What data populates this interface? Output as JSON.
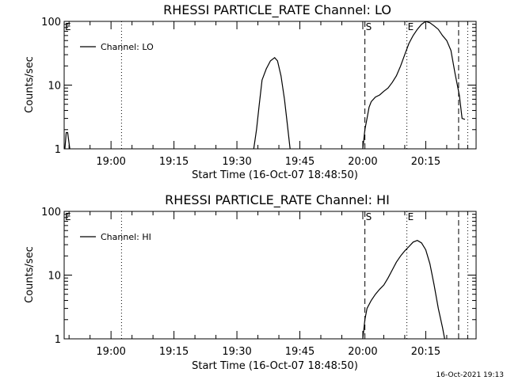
{
  "footer_timestamp": "16-Oct-2021 19:13",
  "chart_data": [
    {
      "type": "line",
      "title": "RHESSI PARTICLE_RATE Channel: LO",
      "xlabel": "Start Time (16-Oct-07 18:48:50)",
      "ylabel": "Counts/sec",
      "yscale": "log",
      "ylim": [
        1,
        100
      ],
      "y_ticks": [
        1,
        10,
        100
      ],
      "y_tick_labels": [
        "1",
        "10",
        "100"
      ],
      "xlim": [
        "18:48:50",
        "20:27:00"
      ],
      "x_ticks": [
        "19:00",
        "19:15",
        "19:30",
        "19:45",
        "20:00",
        "20:15"
      ],
      "legend": {
        "position": "top-left",
        "entries": [
          "Channel: LO"
        ]
      },
      "markers": [
        {
          "label": "E",
          "time": "18:48:50",
          "style": "none"
        },
        {
          "label": "",
          "time": "19:02:30",
          "style": "dotted"
        },
        {
          "label": "S",
          "time": "20:00:30",
          "style": "dashed"
        },
        {
          "label": "E",
          "time": "20:10:30",
          "style": "dotted"
        },
        {
          "label": "",
          "time": "20:22:50",
          "style": "dashed"
        },
        {
          "label": "",
          "time": "20:25:00",
          "style": "dotted"
        }
      ],
      "series": [
        {
          "name": "Channel: LO",
          "segments": [
            [
              [
                "18:49:00",
                1
              ],
              [
                "18:49:20",
                1.8
              ],
              [
                "18:49:40",
                1.8
              ],
              [
                "18:50:10",
                1
              ]
            ],
            [
              [
                "19:34:00",
                1
              ],
              [
                "19:34:40",
                2
              ],
              [
                "19:35:20",
                5
              ],
              [
                "19:36:00",
                12
              ],
              [
                "19:37:00",
                18
              ],
              [
                "19:38:00",
                24
              ],
              [
                "19:39:00",
                27
              ],
              [
                "19:39:40",
                24
              ],
              [
                "19:40:30",
                14
              ],
              [
                "19:41:20",
                6
              ],
              [
                "19:42:00",
                2.5
              ],
              [
                "19:42:40",
                1
              ]
            ],
            [
              [
                "20:00:00",
                1
              ],
              [
                "20:00:30",
                2
              ],
              [
                "20:01:00",
                3
              ],
              [
                "20:01:30",
                4.5
              ],
              [
                "20:02:00",
                5.5
              ],
              [
                "20:03:00",
                6.5
              ],
              [
                "20:04:00",
                7
              ],
              [
                "20:05:00",
                8
              ],
              [
                "20:06:00",
                9
              ],
              [
                "20:07:00",
                11
              ],
              [
                "20:08:00",
                14
              ],
              [
                "20:09:00",
                20
              ],
              [
                "20:10:00",
                30
              ],
              [
                "20:11:00",
                45
              ],
              [
                "20:12:00",
                60
              ],
              [
                "20:13:00",
                75
              ],
              [
                "20:14:00",
                90
              ],
              [
                "20:15:00",
                100
              ],
              [
                "20:16:00",
                95
              ],
              [
                "20:17:00",
                85
              ],
              [
                "20:18:00",
                75
              ],
              [
                "20:19:00",
                60
              ],
              [
                "20:20:00",
                50
              ],
              [
                "20:21:00",
                35
              ],
              [
                "20:22:00",
                15
              ],
              [
                "20:23:00",
                7
              ],
              [
                "20:23:40",
                3
              ],
              [
                "20:24:20",
                2.9
              ]
            ]
          ]
        }
      ]
    },
    {
      "type": "line",
      "title": "RHESSI PARTICLE_RATE Channel: HI",
      "xlabel": "Start Time (16-Oct-07 18:48:50)",
      "ylabel": "Counts/sec",
      "yscale": "log",
      "ylim": [
        1,
        100
      ],
      "y_ticks": [
        1,
        10,
        100
      ],
      "y_tick_labels": [
        "1",
        "10",
        "100"
      ],
      "xlim": [
        "18:48:50",
        "20:27:00"
      ],
      "x_ticks": [
        "19:00",
        "19:15",
        "19:30",
        "19:45",
        "20:00",
        "20:15"
      ],
      "legend": {
        "position": "top-left",
        "entries": [
          "Channel: HI"
        ]
      },
      "markers": [
        {
          "label": "E",
          "time": "18:48:50",
          "style": "none"
        },
        {
          "label": "",
          "time": "19:02:30",
          "style": "dotted"
        },
        {
          "label": "S",
          "time": "20:00:30",
          "style": "dashed"
        },
        {
          "label": "E",
          "time": "20:10:30",
          "style": "dotted"
        },
        {
          "label": "",
          "time": "20:22:50",
          "style": "dashed"
        },
        {
          "label": "",
          "time": "20:25:00",
          "style": "dotted"
        }
      ],
      "series": [
        {
          "name": "Channel: HI",
          "segments": [
            [
              [
                "20:00:00",
                1
              ],
              [
                "20:00:30",
                2
              ],
              [
                "20:01:00",
                3
              ],
              [
                "20:02:00",
                4
              ],
              [
                "20:03:00",
                5
              ],
              [
                "20:04:00",
                6
              ],
              [
                "20:05:00",
                7
              ],
              [
                "20:06:00",
                9
              ],
              [
                "20:07:00",
                12
              ],
              [
                "20:08:00",
                16
              ],
              [
                "20:09:00",
                20
              ],
              [
                "20:10:00",
                24
              ],
              [
                "20:11:00",
                28
              ],
              [
                "20:12:00",
                33
              ],
              [
                "20:13:00",
                35
              ],
              [
                "20:14:00",
                32
              ],
              [
                "20:15:00",
                25
              ],
              [
                "20:16:00",
                15
              ],
              [
                "20:17:00",
                7
              ],
              [
                "20:18:00",
                3
              ],
              [
                "20:19:00",
                1.5
              ],
              [
                "20:19:30",
                1
              ]
            ]
          ]
        }
      ]
    }
  ]
}
